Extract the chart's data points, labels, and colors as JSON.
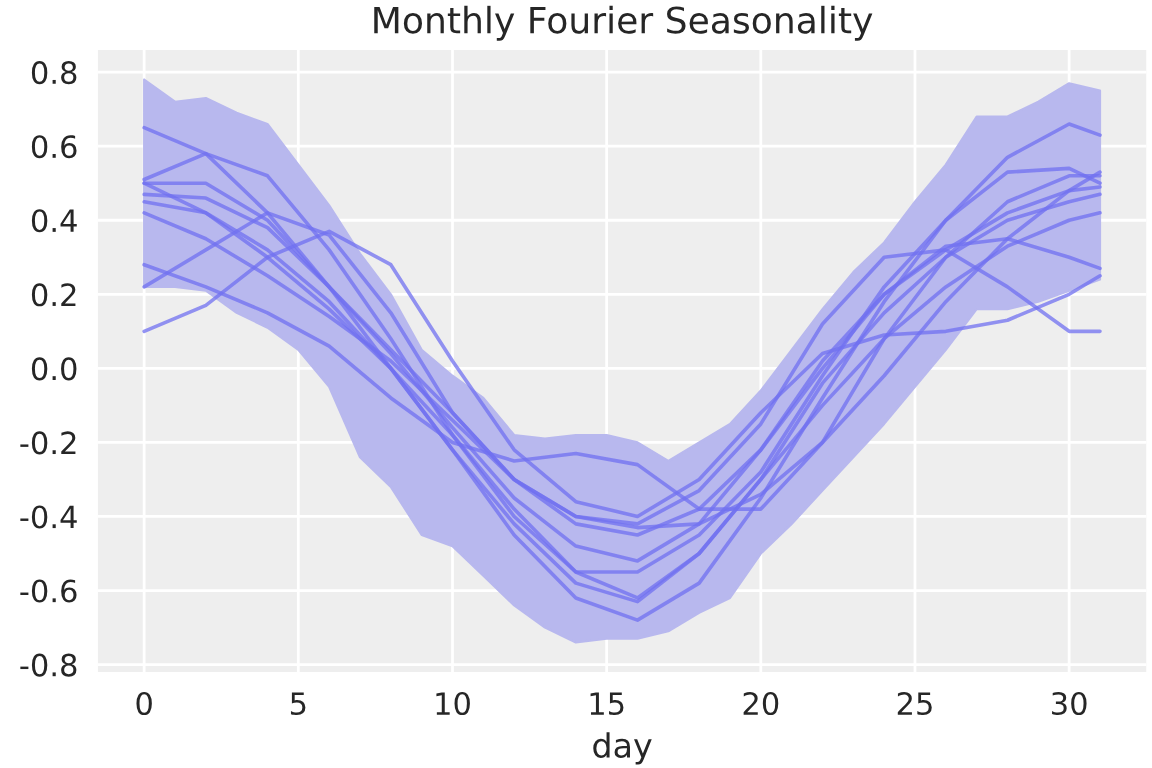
{
  "chart_data": {
    "type": "line",
    "title": "Monthly Fourier Seasonality",
    "xlabel": "day",
    "x": [
      0,
      2,
      4,
      6,
      8,
      10,
      12,
      14,
      16,
      18,
      20,
      22,
      24,
      26,
      28,
      30,
      31
    ],
    "xlim": [
      -1.5,
      32.5
    ],
    "xticks": [
      0,
      5,
      10,
      15,
      20,
      25,
      30
    ],
    "ylim": [
      -0.82,
      0.86
    ],
    "yticks": [
      -0.8,
      -0.6,
      -0.4,
      -0.2,
      {
        "value": 0,
        "label": "0.0"
      },
      0.2,
      0.4,
      0.6,
      0.8
    ],
    "grid": true,
    "marker": "none",
    "line_style": "solid",
    "series": [
      {
        "type": "area",
        "color": "#b8b8ee",
        "x": [
          0,
          1,
          2,
          3,
          4,
          5,
          6,
          7,
          8,
          9,
          10,
          11,
          12,
          13,
          14,
          15,
          16,
          17,
          18,
          19,
          20,
          21,
          22,
          23,
          24,
          25,
          26,
          27,
          28,
          29,
          30,
          31
        ],
        "values": [
          null,
          null,
          null,
          null,
          null,
          null,
          null,
          null,
          null,
          null,
          null,
          null,
          null,
          null,
          null,
          null,
          null,
          null,
          null,
          null,
          null,
          null,
          null,
          null,
          null,
          null,
          null,
          null,
          null,
          null,
          null,
          null
        ],
        "upper": [
          0.78,
          0.72,
          0.73,
          0.69,
          0.66,
          0.55,
          0.44,
          0.31,
          0.2,
          0.05,
          -0.02,
          -0.08,
          -0.18,
          -0.19,
          -0.18,
          -0.18,
          -0.2,
          -0.25,
          -0.2,
          -0.15,
          -0.06,
          0.05,
          0.16,
          0.26,
          0.34,
          0.45,
          0.55,
          0.68,
          0.68,
          0.72,
          0.77,
          0.75
        ],
        "lower": [
          0.22,
          0.22,
          0.21,
          0.15,
          0.11,
          0.05,
          -0.05,
          -0.24,
          -0.32,
          -0.45,
          -0.48,
          -0.56,
          -0.64,
          -0.7,
          -0.74,
          -0.73,
          -0.73,
          -0.71,
          -0.66,
          -0.62,
          -0.5,
          -0.42,
          -0.33,
          -0.24,
          -0.15,
          -0.05,
          0.05,
          0.16,
          0.16,
          0.18,
          0.21,
          0.24
        ]
      },
      {
        "color": "#7070f0",
        "values": [
          0.65,
          0.58,
          0.42,
          0.22,
          0.0,
          -0.22,
          -0.45,
          -0.62,
          -0.68,
          -0.58,
          -0.35,
          -0.08,
          0.18,
          0.4,
          0.57,
          0.66,
          0.63
        ]
      },
      {
        "color": "#7070f0",
        "values": [
          0.1,
          0.17,
          0.3,
          0.37,
          0.28,
          0.02,
          -0.22,
          -0.36,
          -0.4,
          -0.3,
          -0.12,
          0.04,
          0.09,
          0.1,
          0.13,
          0.2,
          0.25
        ]
      },
      {
        "color": "#7070f0",
        "values": [
          0.22,
          0.32,
          0.42,
          0.36,
          0.15,
          -0.12,
          -0.3,
          -0.42,
          -0.45,
          -0.38,
          -0.22,
          0.0,
          0.2,
          0.33,
          0.35,
          0.3,
          0.27
        ]
      },
      {
        "color": "#7070f0",
        "values": [
          0.28,
          0.22,
          0.15,
          0.06,
          -0.08,
          -0.2,
          -0.25,
          -0.23,
          -0.26,
          -0.38,
          -0.38,
          -0.2,
          0.08,
          0.3,
          0.4,
          0.45,
          0.47
        ]
      },
      {
        "color": "#7070f0",
        "values": [
          0.51,
          0.58,
          0.52,
          0.32,
          0.08,
          -0.18,
          -0.4,
          -0.55,
          -0.55,
          -0.45,
          -0.28,
          -0.02,
          0.22,
          0.4,
          0.53,
          0.54,
          0.5
        ]
      },
      {
        "color": "#7070f0",
        "values": [
          0.47,
          0.46,
          0.38,
          0.22,
          0.04,
          -0.16,
          -0.35,
          -0.48,
          -0.52,
          -0.42,
          -0.22,
          0.02,
          0.2,
          0.32,
          0.42,
          0.48,
          0.49
        ]
      },
      {
        "color": "#7070f0",
        "values": [
          0.5,
          0.42,
          0.3,
          0.16,
          0.0,
          -0.18,
          -0.38,
          -0.55,
          -0.62,
          -0.5,
          -0.3,
          -0.1,
          0.08,
          0.22,
          0.33,
          0.4,
          0.42
        ]
      },
      {
        "color": "#7070f0",
        "values": [
          0.45,
          0.42,
          0.32,
          0.18,
          0.0,
          -0.22,
          -0.42,
          -0.58,
          -0.63,
          -0.5,
          -0.3,
          -0.04,
          0.15,
          0.3,
          0.45,
          0.52,
          0.52
        ]
      },
      {
        "color": "#7070f0",
        "values": [
          0.42,
          0.35,
          0.25,
          0.14,
          0.02,
          -0.14,
          -0.3,
          -0.4,
          -0.43,
          -0.42,
          -0.34,
          -0.2,
          -0.02,
          0.18,
          0.35,
          0.48,
          0.53
        ]
      },
      {
        "color": "#7070f0",
        "values": [
          0.5,
          0.5,
          0.4,
          0.22,
          0.05,
          -0.12,
          -0.3,
          -0.4,
          -0.42,
          -0.33,
          -0.15,
          0.12,
          0.3,
          0.32,
          0.22,
          0.1,
          0.1
        ]
      }
    ]
  }
}
